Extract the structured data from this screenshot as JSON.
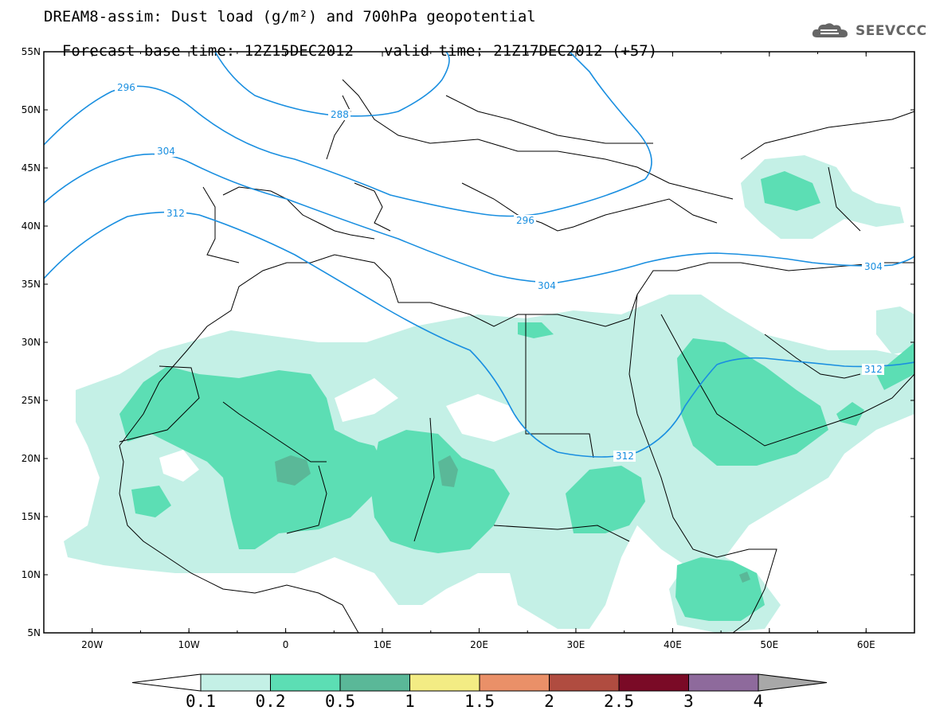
{
  "header": {
    "title_line1": "DREAM8-assim: Dust load (g/m²) and 700hPa geopotential",
    "base_time": "Forecast base time: 12Z15DEC2012",
    "valid_time": "valid time: 21Z17DEC2012 (+57)",
    "logo_text": "SEEVCCC"
  },
  "axes": {
    "lat_labels": [
      "55N",
      "50N",
      "45N",
      "40N",
      "35N",
      "30N",
      "25N",
      "20N",
      "15N",
      "10N",
      "5N"
    ],
    "lon_labels": [
      "20W",
      "10W",
      "0",
      "10E",
      "20E",
      "30E",
      "40E",
      "50E",
      "60E"
    ]
  },
  "contour_labels": [
    "296",
    "288",
    "304",
    "312",
    "296",
    "304",
    "304",
    "312",
    "312"
  ],
  "colorbar": {
    "labels": [
      "0.1",
      "0.2",
      "0.5",
      "1",
      "1.5",
      "2",
      "2.5",
      "3",
      "4"
    ],
    "colors": {
      "under": "#ffffff",
      "bins": [
        "#c4f0e6",
        "#5cdeb4",
        "#5ab898",
        "#f3ec84",
        "#ea9068",
        "#b04c40",
        "#7a0a26",
        "#8e6a9c"
      ],
      "over": "#a8a8a8"
    }
  },
  "colors": {
    "contour": "#1a8fe0",
    "border": "#000000"
  }
}
